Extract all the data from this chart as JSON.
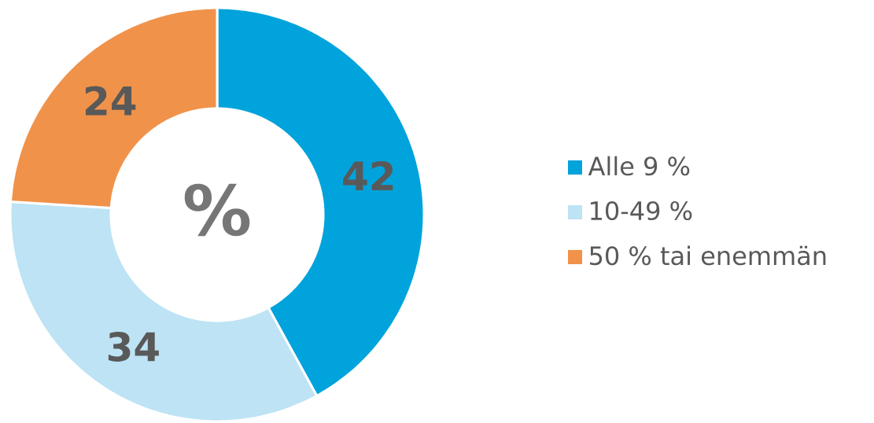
{
  "chart_data": {
    "type": "donut",
    "categories": [
      "Alle 9 %",
      "10-49 %",
      "50 % tai enemmän"
    ],
    "values": [
      42,
      34,
      24
    ],
    "colors": [
      "#00a3db",
      "#bde3f5",
      "#f0924a"
    ],
    "data_labels": true,
    "legend": "right",
    "annotations": [
      "%"
    ]
  }
}
